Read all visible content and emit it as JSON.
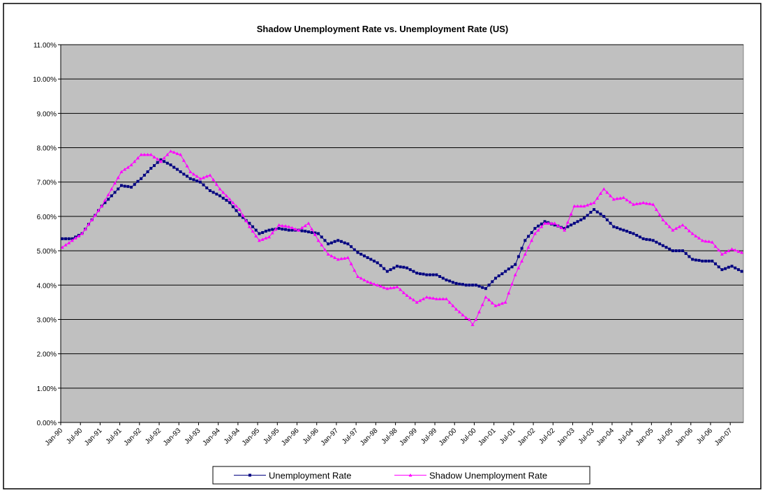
{
  "chart_data": {
    "type": "line",
    "title": "Shadow Unemployment Rate vs. Unemployment Rate (US)",
    "categories": [
      "Jan-90",
      null,
      null,
      null,
      null,
      null,
      "Jul-90",
      null,
      null,
      null,
      null,
      null,
      "Jan-91",
      null,
      null,
      null,
      null,
      null,
      "Jul-91",
      null,
      null,
      null,
      null,
      null,
      "Jan-92",
      null,
      null,
      null,
      null,
      null,
      "Jul-92",
      null,
      null,
      null,
      null,
      null,
      "Jan-93",
      null,
      null,
      null,
      null,
      null,
      "Jul-93",
      null,
      null,
      null,
      null,
      null,
      "Jan-94",
      null,
      null,
      null,
      null,
      null,
      "Jul-94",
      null,
      null,
      null,
      null,
      null,
      "Jan-95",
      null,
      null,
      null,
      null,
      null,
      "Jul-95",
      null,
      null,
      null,
      null,
      null,
      "Jan-96",
      null,
      null,
      null,
      null,
      null,
      "Jul-96",
      null,
      null,
      null,
      null,
      null,
      "Jan-97",
      null,
      null,
      null,
      null,
      null,
      "Jul-97",
      null,
      null,
      null,
      null,
      null,
      "Jan-98",
      null,
      null,
      null,
      null,
      null,
      "Jul-98",
      null,
      null,
      null,
      null,
      null,
      "Jan-99",
      null,
      null,
      null,
      null,
      null,
      "Jul-99",
      null,
      null,
      null,
      null,
      null,
      "Jan-00",
      null,
      null,
      null,
      null,
      null,
      "Jul-00",
      null,
      null,
      null,
      null,
      null,
      "Jan-01",
      null,
      null,
      null,
      null,
      null,
      "Jul-01",
      null,
      null,
      null,
      null,
      null,
      "Jan-02",
      null,
      null,
      null,
      null,
      null,
      "Jul-02",
      null,
      null,
      null,
      null,
      null,
      "Jan-03",
      null,
      null,
      null,
      null,
      null,
      "Jul-03",
      null,
      null,
      null,
      null,
      null,
      "Jan-04",
      null,
      null,
      null,
      null,
      null,
      "Jul-04",
      null,
      null,
      null,
      null,
      null,
      "Jan-05",
      null,
      null,
      null,
      null,
      null,
      "Jul-05",
      null,
      null,
      null,
      null,
      null,
      "Jan-06",
      null,
      null,
      null,
      null,
      null,
      "Jul-06",
      null,
      null,
      null,
      null,
      null,
      "Jan-07",
      null,
      null,
      null
    ],
    "series": [
      {
        "name": "Unemployment Rate",
        "color": "#000080",
        "marker": "square",
        "values": [
          5.35,
          5.35,
          5.35,
          5.35,
          5.4,
          5.45,
          5.5,
          5.63,
          5.77,
          5.9,
          6.03,
          6.17,
          6.3,
          6.4,
          6.5,
          6.6,
          6.7,
          6.8,
          6.9,
          6.88,
          6.87,
          6.85,
          6.93,
          7.02,
          7.1,
          7.2,
          7.3,
          7.4,
          7.48,
          7.57,
          7.65,
          7.6,
          7.55,
          7.5,
          7.43,
          7.37,
          7.3,
          7.23,
          7.17,
          7.1,
          7.07,
          7.03,
          7.0,
          6.92,
          6.83,
          6.75,
          6.7,
          6.65,
          6.6,
          6.53,
          6.47,
          6.4,
          6.28,
          6.17,
          6.05,
          5.97,
          5.88,
          5.8,
          5.7,
          5.6,
          5.5,
          5.53,
          5.57,
          5.6,
          5.62,
          5.63,
          5.65,
          5.63,
          5.62,
          5.6,
          5.6,
          5.6,
          5.6,
          5.58,
          5.57,
          5.55,
          5.53,
          5.52,
          5.5,
          5.4,
          5.3,
          5.2,
          5.23,
          5.27,
          5.3,
          5.27,
          5.23,
          5.2,
          5.12,
          5.03,
          4.95,
          4.9,
          4.85,
          4.8,
          4.75,
          4.7,
          4.65,
          4.57,
          4.48,
          4.4,
          4.45,
          4.5,
          4.55,
          4.53,
          4.52,
          4.5,
          4.45,
          4.4,
          4.35,
          4.33,
          4.32,
          4.3,
          4.3,
          4.3,
          4.3,
          4.25,
          4.2,
          4.15,
          4.12,
          4.08,
          4.05,
          4.03,
          4.02,
          4.0,
          4.0,
          4.0,
          4.0,
          3.97,
          3.93,
          3.9,
          4.0,
          4.1,
          4.2,
          4.27,
          4.33,
          4.4,
          4.47,
          4.53,
          4.6,
          4.83,
          5.07,
          5.3,
          5.42,
          5.53,
          5.65,
          5.72,
          5.78,
          5.85,
          5.82,
          5.78,
          5.75,
          5.72,
          5.68,
          5.65,
          5.7,
          5.75,
          5.8,
          5.85,
          5.9,
          5.95,
          6.03,
          6.12,
          6.2,
          6.13,
          6.07,
          6.0,
          5.9,
          5.8,
          5.7,
          5.67,
          5.63,
          5.6,
          5.57,
          5.53,
          5.5,
          5.45,
          5.4,
          5.35,
          5.33,
          5.32,
          5.3,
          5.25,
          5.2,
          5.15,
          5.1,
          5.05,
          5.0,
          5.0,
          5.0,
          5.0,
          4.92,
          4.83,
          4.75,
          4.73,
          4.72,
          4.7,
          4.7,
          4.7,
          4.7,
          4.62,
          4.53,
          4.45,
          4.48,
          4.52,
          4.55,
          4.5,
          4.45,
          4.4
        ]
      },
      {
        "name": "Shadow Unemployment Rate",
        "color": "#ff00ff",
        "marker": "triangle",
        "values": [
          5.1,
          5.17,
          5.23,
          5.3,
          5.37,
          5.43,
          5.5,
          5.63,
          5.77,
          5.9,
          6.03,
          6.17,
          6.3,
          6.47,
          6.63,
          6.8,
          6.97,
          7.13,
          7.3,
          7.37,
          7.43,
          7.5,
          7.6,
          7.7,
          7.8,
          7.8,
          7.8,
          7.8,
          7.73,
          7.67,
          7.6,
          7.7,
          7.8,
          7.9,
          7.87,
          7.83,
          7.8,
          7.63,
          7.47,
          7.3,
          7.23,
          7.17,
          7.1,
          7.13,
          7.17,
          7.2,
          7.07,
          6.93,
          6.8,
          6.7,
          6.6,
          6.5,
          6.4,
          6.3,
          6.2,
          6.03,
          5.87,
          5.7,
          5.57,
          5.43,
          5.3,
          5.33,
          5.37,
          5.4,
          5.52,
          5.63,
          5.75,
          5.73,
          5.72,
          5.7,
          5.67,
          5.63,
          5.6,
          5.67,
          5.73,
          5.8,
          5.63,
          5.47,
          5.3,
          5.17,
          5.03,
          4.9,
          4.85,
          4.8,
          4.75,
          4.77,
          4.78,
          4.8,
          4.62,
          4.43,
          4.25,
          4.2,
          4.15,
          4.1,
          4.07,
          4.03,
          4.0,
          3.97,
          3.93,
          3.9,
          3.92,
          3.93,
          3.95,
          3.87,
          3.78,
          3.7,
          3.63,
          3.57,
          3.5,
          3.55,
          3.6,
          3.65,
          3.63,
          3.62,
          3.6,
          3.6,
          3.6,
          3.6,
          3.5,
          3.4,
          3.3,
          3.22,
          3.13,
          3.05,
          3.0,
          2.85,
          3.0,
          3.22,
          3.43,
          3.65,
          3.57,
          3.48,
          3.4,
          3.43,
          3.47,
          3.5,
          3.77,
          4.03,
          4.3,
          4.5,
          4.7,
          4.9,
          5.1,
          5.3,
          5.5,
          5.6,
          5.7,
          5.8,
          5.8,
          5.8,
          5.8,
          5.73,
          5.67,
          5.6,
          5.83,
          6.07,
          6.3,
          6.3,
          6.3,
          6.3,
          6.33,
          6.37,
          6.4,
          6.53,
          6.67,
          6.8,
          6.7,
          6.6,
          6.5,
          6.52,
          6.53,
          6.55,
          6.48,
          6.42,
          6.35,
          6.37,
          6.38,
          6.4,
          6.38,
          6.37,
          6.35,
          6.2,
          6.05,
          5.9,
          5.8,
          5.7,
          5.6,
          5.65,
          5.7,
          5.75,
          5.67,
          5.58,
          5.5,
          5.43,
          5.37,
          5.3,
          5.28,
          5.27,
          5.25,
          5.13,
          5.02,
          4.9,
          4.95,
          5.0,
          5.05,
          5.02,
          4.98,
          4.95
        ]
      }
    ],
    "ylim": [
      0,
      11
    ],
    "yticks": [
      {
        "value": 0,
        "label": "0.00%"
      },
      {
        "value": 1,
        "label": "1.00%"
      },
      {
        "value": 2,
        "label": "2.00%"
      },
      {
        "value": 3,
        "label": "3.00%"
      },
      {
        "value": 4,
        "label": "4.00%"
      },
      {
        "value": 5,
        "label": "5.00%"
      },
      {
        "value": 6,
        "label": "6.00%"
      },
      {
        "value": 7,
        "label": "7.00%"
      },
      {
        "value": 8,
        "label": "8.00%"
      },
      {
        "value": 9,
        "label": "9.00%"
      },
      {
        "value": 10,
        "label": "10.00%"
      },
      {
        "value": 11,
        "label": "11.00%"
      }
    ],
    "grid": true,
    "legend": "bottom"
  }
}
